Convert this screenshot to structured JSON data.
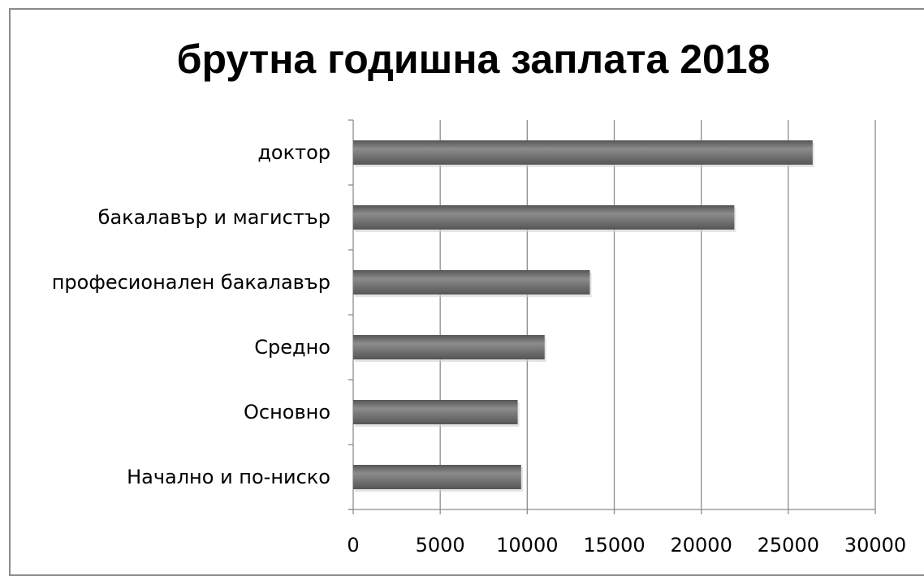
{
  "chart_data": {
    "type": "bar",
    "orientation": "horizontal",
    "title": "брутна годишна заплата 2018",
    "categories": [
      "доктор",
      "бакалавър и магистър",
      "професионален бакалавър",
      "Средно ",
      "Основно ",
      "Начално и по-ниско"
    ],
    "values": [
      26400,
      21900,
      13600,
      11000,
      9450,
      9650
    ],
    "xlabel": "",
    "ylabel": "",
    "xlim": [
      0,
      30000
    ],
    "xticks": [
      0,
      5000,
      10000,
      15000,
      20000,
      25000,
      30000
    ],
    "xtick_labels": [
      "0",
      "5000",
      "10000",
      "15000",
      "20000",
      "25000",
      "30000"
    ],
    "grid": "vertical",
    "legend": "none",
    "bar_color": "#555555",
    "bar_highlight_color": "#8c8c8c",
    "grid_color": "#8c8c8c",
    "frame_color": "#8a8a8a"
  }
}
